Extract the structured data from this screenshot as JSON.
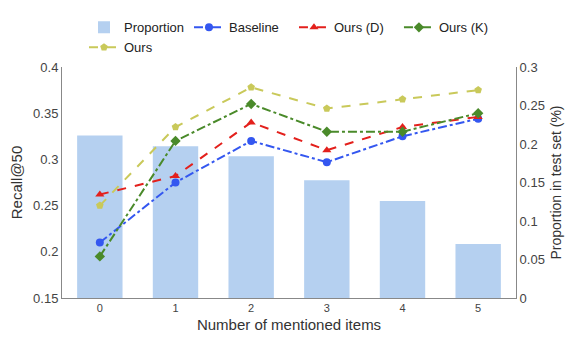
{
  "chart_data": {
    "type": "line",
    "categories": [
      "0",
      "1",
      "2",
      "3",
      "4",
      "5"
    ],
    "x_label": "Number of mentioned items",
    "y_label": "Recall@50",
    "y2_label": "Proportion in test set (%)",
    "ylim": [
      0.15,
      0.4
    ],
    "yticks": [
      0.15,
      0.2,
      0.25,
      0.3,
      0.35,
      0.4
    ],
    "y2lim": [
      0,
      0.3
    ],
    "y2ticks": [
      0,
      0.05,
      0.1,
      0.15,
      0.2,
      0.25,
      0.3
    ],
    "grid": false,
    "legend": "top",
    "series": [
      {
        "name": "Proportion",
        "type": "bar",
        "axis": "y2",
        "color": "#b5d0f0",
        "values": [
          0.211,
          0.197,
          0.184,
          0.153,
          0.126,
          0.07
        ]
      },
      {
        "name": "Baseline",
        "type": "line",
        "color": "#3457f0",
        "marker": "circle",
        "line_style": "dashdot",
        "values": [
          0.21,
          0.275,
          0.32,
          0.297,
          0.325,
          0.344
        ]
      },
      {
        "name": "Ours (D)",
        "type": "line",
        "color": "#e3201c",
        "marker": "triangle-up",
        "line_style": "dash",
        "values": [
          0.262,
          0.282,
          0.34,
          0.31,
          0.335,
          0.346
        ]
      },
      {
        "name": "Ours (K)",
        "type": "line",
        "color": "#4a8a2a",
        "marker": "diamond",
        "line_style": "dashdot",
        "values": [
          0.195,
          0.32,
          0.36,
          0.33,
          0.33,
          0.35
        ]
      },
      {
        "name": "Ours",
        "type": "line",
        "color": "#c9c95a",
        "marker": "pentagon",
        "line_style": "dash",
        "values": [
          0.25,
          0.335,
          0.378,
          0.355,
          0.365,
          0.375
        ]
      }
    ]
  }
}
